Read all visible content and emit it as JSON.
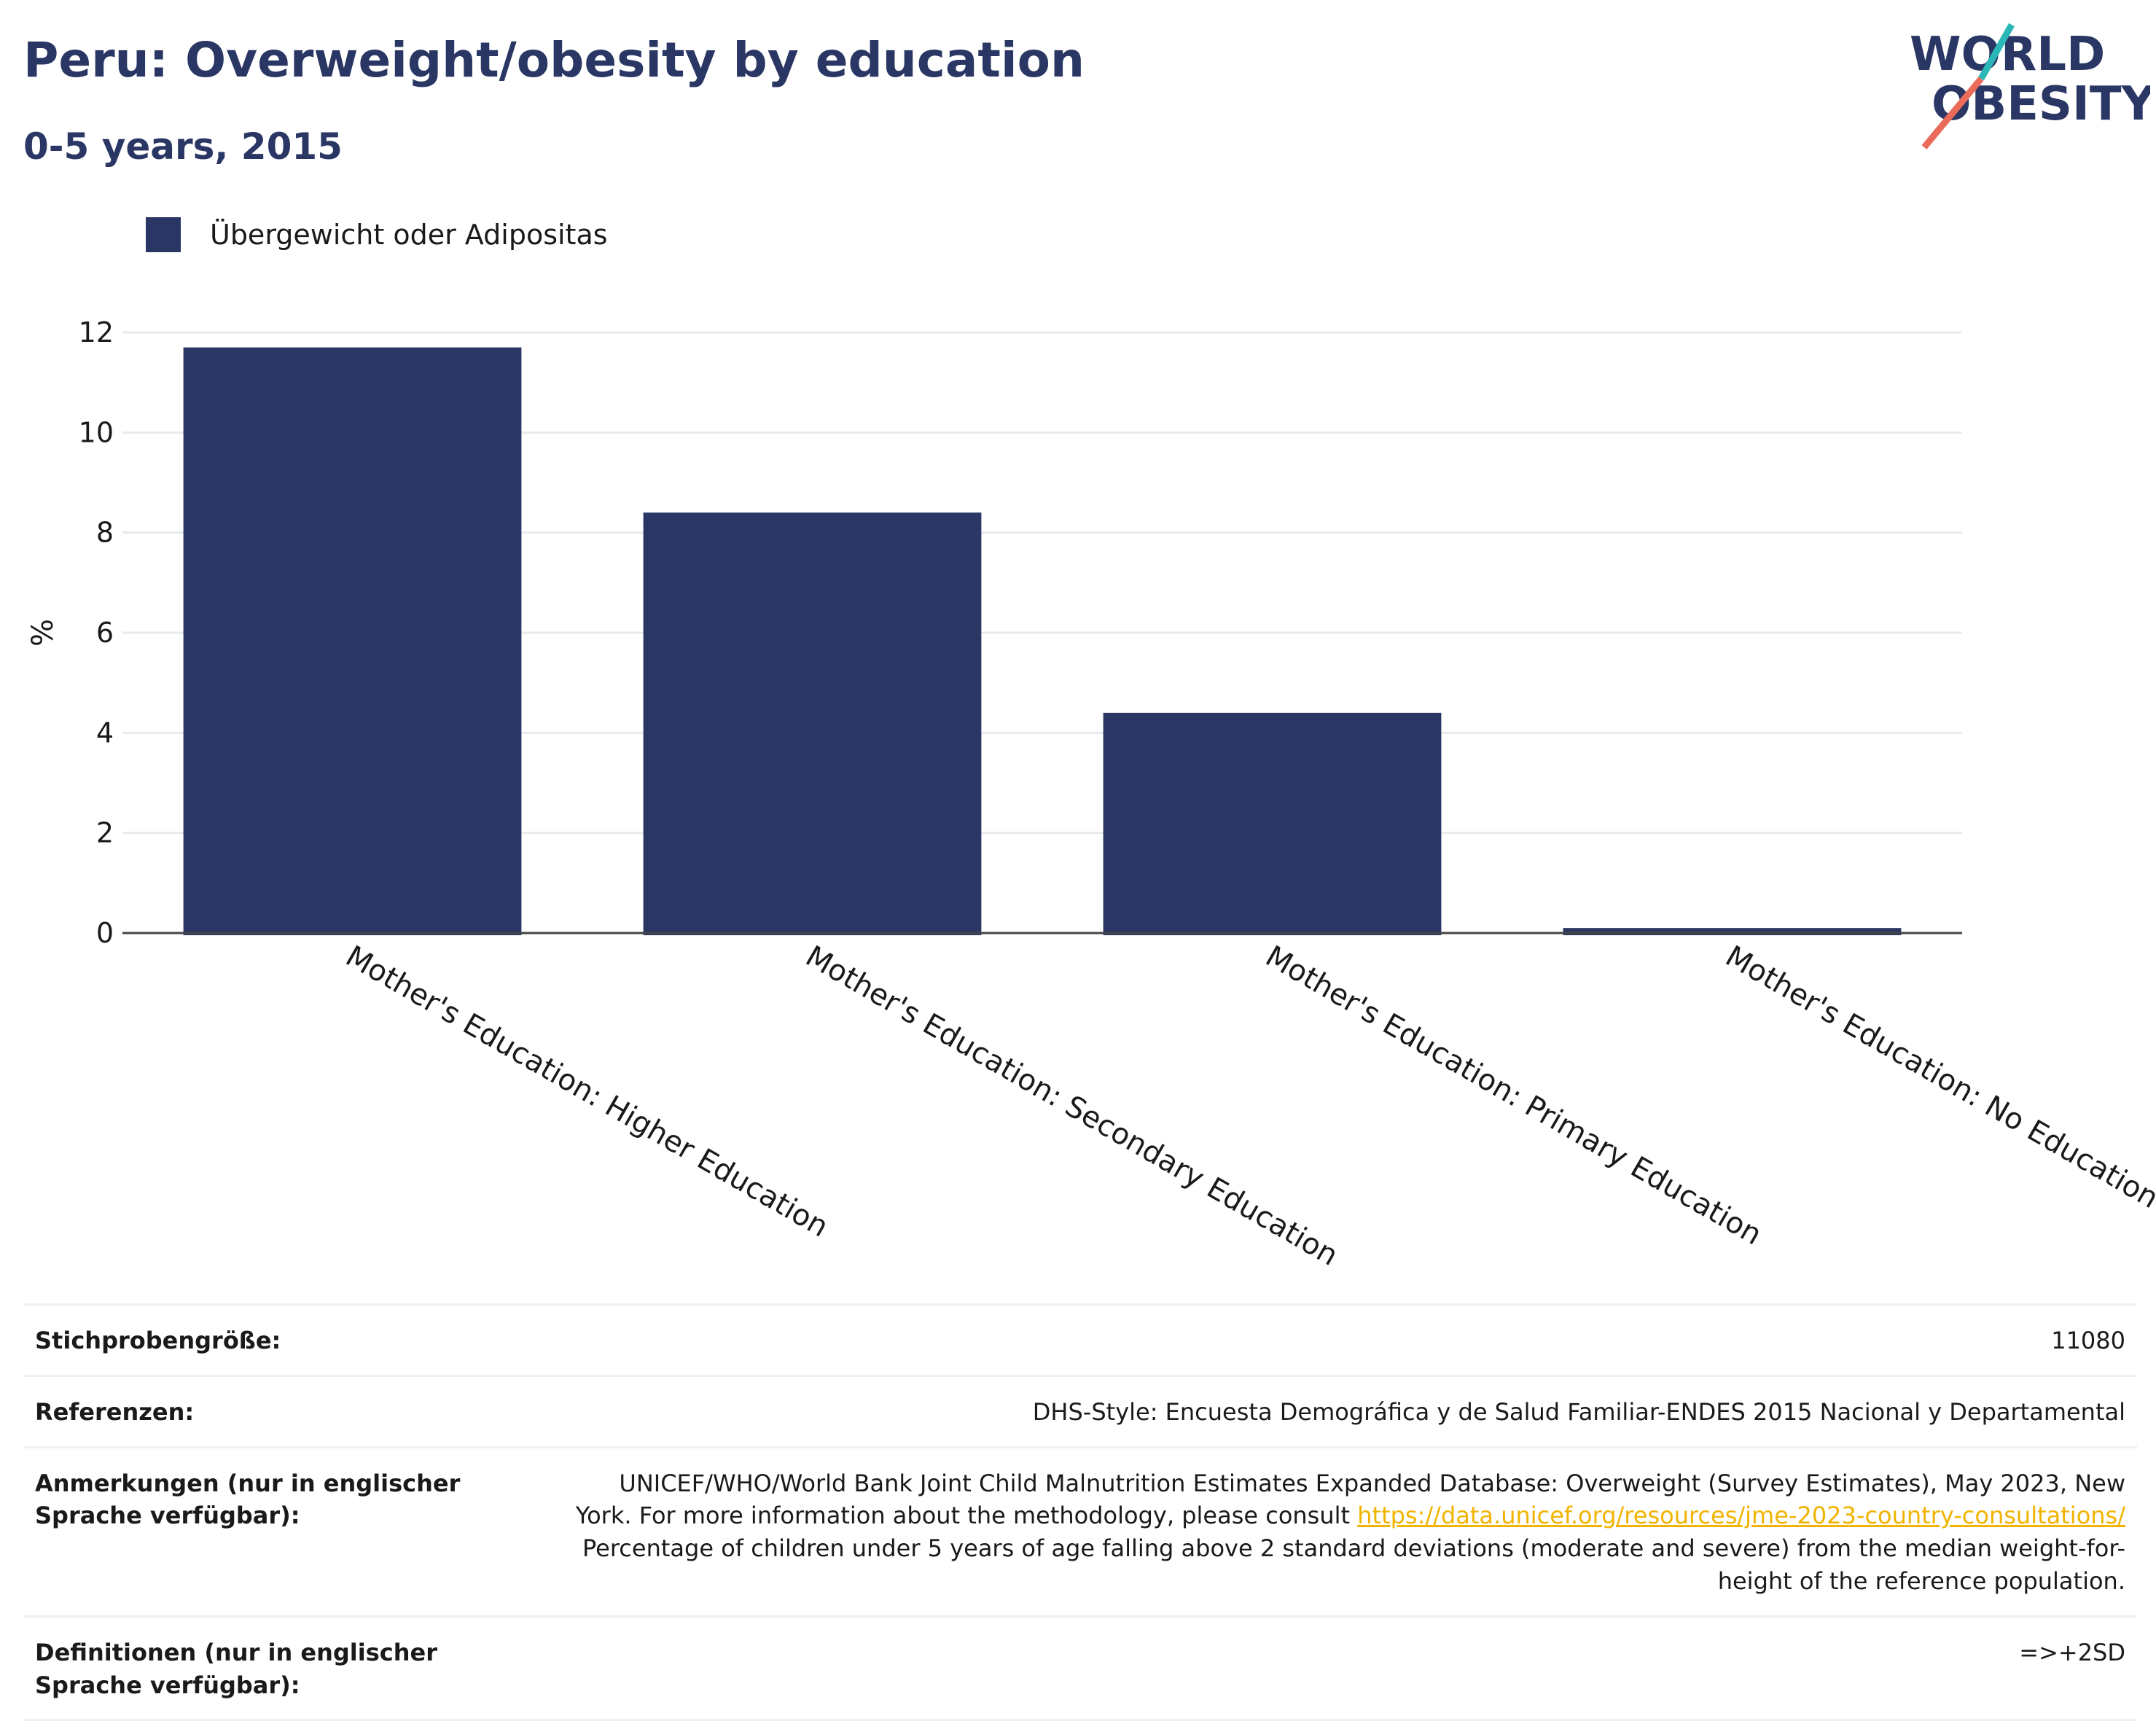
{
  "header": {
    "title": "Peru: Overweight/obesity by education",
    "subtitle": "0-5 years, 2015"
  },
  "logo": {
    "line1": "WORLD",
    "line2": "OBESITY",
    "colors": {
      "navy": "#2a3764",
      "teal": "#2ab7b5",
      "coral": "#ea6b5a"
    }
  },
  "legend": {
    "label": "Übergewicht oder Adipositas",
    "color": "#2a3764"
  },
  "chart_data": {
    "type": "bar",
    "categories": [
      "Mother's Education: Higher Education",
      "Mother's Education: Secondary Education",
      "Mother's Education: Primary Education",
      "Mother's Education: No Education"
    ],
    "series": [
      {
        "name": "Übergewicht oder Adipositas",
        "values": [
          11.7,
          8.4,
          4.4,
          0.1
        ]
      }
    ],
    "ylabel": "%",
    "ylim": [
      0,
      12
    ],
    "yticks": [
      "0",
      "2",
      "4",
      "6",
      "8",
      "10",
      "12"
    ],
    "grid": true,
    "legend_position": "top-left",
    "bar_color": "#2a3764"
  },
  "info": {
    "sample_size": {
      "label": "Stichprobengröße:",
      "value": "11080"
    },
    "references": {
      "label": "Referenzen:",
      "value": "DHS-Style: Encuesta Demográfica y de Salud Familiar-ENDES 2015 Nacional y Departamental"
    },
    "notes": {
      "label": "Anmerkungen (nur in englischer Sprache verfügbar):",
      "text1": "UNICEF/WHO/World Bank Joint Child Malnutrition Estimates Expanded Database: Overweight (Survey Estimates), May 2023, New York. For more information about the methodology, please consult ",
      "link": "https://data.unicef.org/resources/jme-2023-country-consultations/",
      "text2": "Percentage of children under 5 years of age falling above 2 standard deviations (moderate and severe) from the median weight-for-height of the reference population."
    },
    "definitions": {
      "label": "Definitionen (nur in englischer Sprache verfügbar):",
      "value": "=>+2SD"
    }
  }
}
